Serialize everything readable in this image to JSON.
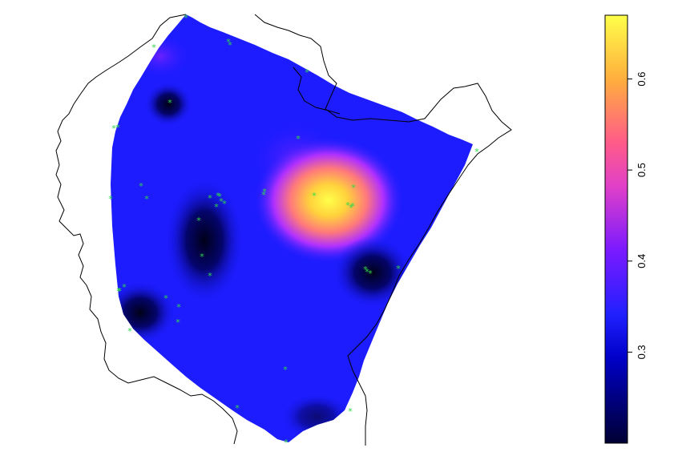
{
  "legend": {
    "tick_labels": [
      "0.3",
      "0.4",
      "0.5",
      "0.6"
    ],
    "tick_values": [
      0.3,
      0.4,
      0.5,
      0.6
    ],
    "range": [
      0.2,
      0.67
    ],
    "colors": [
      "#000033",
      "#0000ff",
      "#7a1aff",
      "#ff4fa8",
      "#ffae3d",
      "#ffff4a"
    ]
  },
  "surface": {
    "base_color": "#1c1cff",
    "hotspot_color": "#ffd23c",
    "low_color": "#000022"
  },
  "sample_points": {
    "marker": "*",
    "color": "#2ed84a",
    "count": 44
  }
}
